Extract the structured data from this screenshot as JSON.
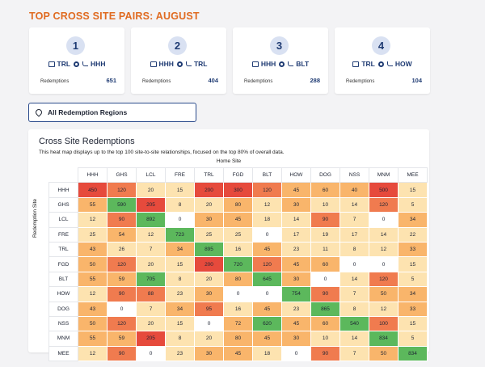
{
  "page_title": "TOP CROSS SITE PAIRS: AUGUST",
  "top_pairs": [
    {
      "rank": "1",
      "from": "TRL",
      "to": "HHH",
      "label": "Redemptions",
      "value": "651"
    },
    {
      "rank": "2",
      "from": "HHH",
      "to": "TRL",
      "label": "Redemptions",
      "value": "404"
    },
    {
      "rank": "3",
      "from": "HHH",
      "to": "BLT",
      "label": "Redemptions",
      "value": "288"
    },
    {
      "rank": "4",
      "from": "TRL",
      "to": "HOW",
      "label": "Redemptions",
      "value": "104"
    }
  ],
  "region_filter": {
    "value": "All Redemption Regions",
    "icon": "map-pin-icon"
  },
  "heatmap": {
    "title": "Cross Site Redemptions",
    "description": "This heat map displays up to the top 100 site-to-site relationships, focused on the top 80% of overall data.",
    "x_axis_label": "Home Site",
    "y_axis_label": "Redemption Site",
    "columns": [
      "HHH",
      "GHS",
      "LCL",
      "FRE",
      "TRL",
      "FGD",
      "BLT",
      "HOW",
      "DOG",
      "NSS",
      "MNM",
      "MEE"
    ],
    "rows": [
      {
        "label": "HHH",
        "values": [
          "450",
          "120",
          "20",
          "15",
          "200",
          "300",
          "120",
          "45",
          "60",
          "40",
          "500",
          "15"
        ]
      },
      {
        "label": "GHS",
        "values": [
          "55",
          "590",
          "205",
          "8",
          "20",
          "80",
          "12",
          "30",
          "10",
          "14",
          "120",
          "5"
        ]
      },
      {
        "label": "LCL",
        "values": [
          "12",
          "90",
          "892",
          "0",
          "30",
          "45",
          "18",
          "14",
          "90",
          "7",
          "0",
          "34"
        ]
      },
      {
        "label": "FRE",
        "values": [
          "25",
          "54",
          "12",
          "723",
          "25",
          "25",
          "0",
          "17",
          "19",
          "17",
          "14",
          "22"
        ]
      },
      {
        "label": "TRL",
        "values": [
          "43",
          "26",
          "7",
          "34",
          "895",
          "16",
          "45",
          "23",
          "11",
          "8",
          "12",
          "33"
        ]
      },
      {
        "label": "FGD",
        "values": [
          "50",
          "120",
          "20",
          "15",
          "200",
          "720",
          "120",
          "45",
          "60",
          "0",
          "0",
          "15"
        ]
      },
      {
        "label": "BLT",
        "values": [
          "55",
          "59",
          "705",
          "8",
          "20",
          "80",
          "645",
          "30",
          "0",
          "14",
          "120",
          "5"
        ]
      },
      {
        "label": "HOW",
        "values": [
          "12",
          "90",
          "88",
          "23",
          "30",
          "0",
          "0",
          "754",
          "90",
          "7",
          "50",
          "34"
        ]
      },
      {
        "label": "DOG",
        "values": [
          "43",
          "0",
          "7",
          "34",
          "95",
          "16",
          "45",
          "23",
          "865",
          "8",
          "12",
          "33"
        ]
      },
      {
        "label": "NSS",
        "values": [
          "50",
          "120",
          "20",
          "15",
          "0",
          "72",
          "620",
          "45",
          "60",
          "540",
          "100",
          "15"
        ]
      },
      {
        "label": "MNM",
        "values": [
          "55",
          "59",
          "205",
          "8",
          "20",
          "80",
          "45",
          "30",
          "10",
          "14",
          "834",
          "5"
        ]
      },
      {
        "label": "MEE",
        "values": [
          "12",
          "90",
          "0",
          "23",
          "30",
          "45",
          "18",
          "0",
          "90",
          "7",
          "50",
          "834"
        ]
      }
    ]
  },
  "colors": {
    "title_orange": "#e06b21",
    "navy": "#1f3b73",
    "scale_zero": "#ffffff",
    "scale_low": "#fde3b0",
    "scale_mid": "#f9b56b",
    "scale_high": "#f07b4f",
    "scale_very_high": "#e64a3c",
    "scale_top": "#5cb85c"
  }
}
